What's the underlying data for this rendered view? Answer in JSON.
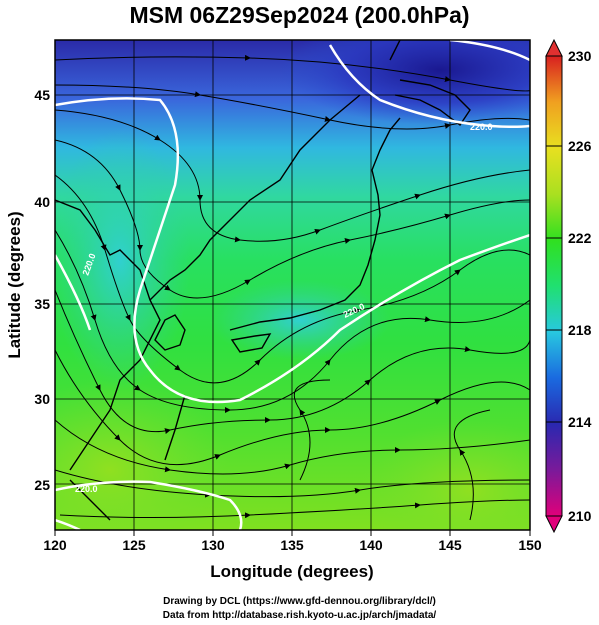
{
  "title": "MSM 06Z29Sep2024 (200.0hPa)",
  "map": {
    "lon_range": [
      120,
      150
    ],
    "lat_range": [
      22.7,
      47.9
    ],
    "x_axis_label": "Longitude (degrees)",
    "y_axis_label": "Latitude  (degrees)",
    "x_ticks": [
      "120",
      "125",
      "130",
      "135",
      "140",
      "145",
      "150"
    ],
    "y_ticks": [
      "25",
      "30",
      "35",
      "40",
      "45"
    ],
    "field": "temperature (color shading)",
    "overlay": "wind streamlines",
    "contour_labels": [
      "220.0",
      "220.0",
      "220.0",
      "220.0"
    ]
  },
  "colorbar": {
    "min": 210,
    "max": 230,
    "labels": [
      "230",
      "226",
      "222",
      "218",
      "214",
      "210"
    ],
    "colors": [
      "#e0007a",
      "#7a1a9a",
      "#2a28b0",
      "#1a6ae0",
      "#28c8e0",
      "#20e070",
      "#30e020",
      "#aae020",
      "#e8e020",
      "#f0a020",
      "#e85020",
      "#d82020"
    ]
  },
  "credits": {
    "line1": "Drawing by DCL (https://www.gfd-dennou.org/library/dcl/)",
    "line2": "Data from http://database.rish.kyoto-u.ac.jp/arch/jmadata/"
  }
}
